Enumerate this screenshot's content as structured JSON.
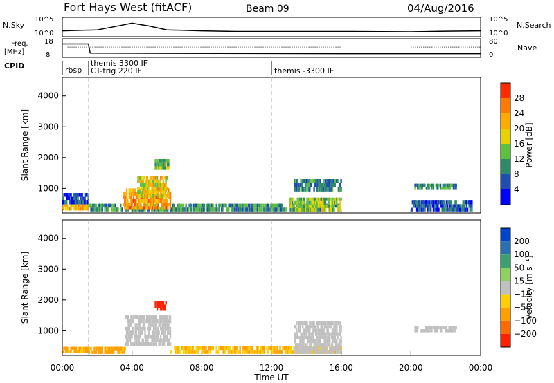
{
  "header": {
    "title": "Fort Hays West (fitACF)",
    "beam": "Beam 09",
    "date": "04/Aug/2016"
  },
  "panels": {
    "nsky": {
      "left_label": "N.Sky",
      "right_label": "N.Search",
      "left_ticks": [
        "10^5",
        "10^0"
      ],
      "right_ticks": [
        "10^5",
        "10^0"
      ]
    },
    "freq": {
      "left_label_1": "Freq.",
      "left_label_2": "[MHz]",
      "right_label": "Nave",
      "left_ticks": [
        "18",
        "8"
      ],
      "right_ticks": [
        "80",
        "0"
      ]
    },
    "cpid": {
      "label": "CPID",
      "segments": [
        {
          "label": "rbsp",
          "row": 2
        },
        {
          "label": "themis 3300 IF",
          "row": 1
        },
        {
          "label": "CT-trig 220 IF",
          "row": 2
        },
        {
          "label": "themis -3300 IF",
          "row": 2
        }
      ]
    }
  },
  "colors": {
    "power": [
      "#0000ff",
      "#1e4db4",
      "#2f8a6a",
      "#5fbf3f",
      "#e6d200",
      "#ffaa00",
      "#ff7a00",
      "#ff2a00"
    ],
    "velocity": [
      "#0044cc",
      "#2a6fb0",
      "#3aa070",
      "#8fd060",
      "#c0c0c0",
      "#ffd000",
      "#ffa000",
      "#ff6a00",
      "#ff2000"
    ]
  },
  "chart_data": [
    {
      "type": "heatmap",
      "panel": "power",
      "ylabel": "Slant Range [km]",
      "yticks": [
        "1000",
        "2000",
        "3000",
        "4000"
      ],
      "ylim": [
        200,
        4600
      ],
      "xlim": [
        0,
        24
      ],
      "colorbar_label": "Power [dB]",
      "colorbar_ticks": [
        "4",
        "8",
        "12",
        "16",
        "20",
        "24",
        "28"
      ],
      "clim": [
        0,
        30
      ],
      "regions": [
        {
          "t0": 0.0,
          "t1": 1.5,
          "r0": 280,
          "r1": 480,
          "level": 20
        },
        {
          "t0": 0.0,
          "t1": 1.5,
          "r0": 480,
          "r1": 850,
          "level": 6
        },
        {
          "t0": 1.5,
          "t1": 16.0,
          "r0": 250,
          "r1": 500,
          "level": 10
        },
        {
          "t0": 3.5,
          "t1": 6.2,
          "r0": 300,
          "r1": 1000,
          "level": 22
        },
        {
          "t0": 4.3,
          "t1": 6.0,
          "r0": 700,
          "r1": 1400,
          "level": 18
        },
        {
          "t0": 5.3,
          "t1": 6.1,
          "r0": 1600,
          "r1": 1950,
          "level": 12
        },
        {
          "t0": 13.3,
          "t1": 16.0,
          "r0": 900,
          "r1": 1300,
          "level": 8
        },
        {
          "t0": 13.0,
          "t1": 16.0,
          "r0": 250,
          "r1": 700,
          "level": 14
        },
        {
          "t0": 20.2,
          "t1": 22.6,
          "r0": 950,
          "r1": 1150,
          "level": 10
        },
        {
          "t0": 20.0,
          "t1": 23.5,
          "r0": 250,
          "r1": 600,
          "level": 6
        }
      ]
    },
    {
      "type": "heatmap",
      "panel": "velocity",
      "ylabel": "Slant Range [km]",
      "yticks": [
        "1000",
        "2000",
        "3000",
        "4000"
      ],
      "ylim": [
        200,
        4600
      ],
      "xlim": [
        0,
        24
      ],
      "xticks": [
        "00:00",
        "04:00",
        "08:00",
        "12:00",
        "16:00",
        "20:00",
        "00:00"
      ],
      "xlabel": "Time UT",
      "colorbar_label": "Velocity [m s⁻¹]",
      "colorbar_ticks": [
        "200",
        "100",
        "50",
        "15",
        "−15",
        "−50",
        "−100",
        "−200"
      ],
      "regions": [
        {
          "t0": 0.0,
          "t1": 1.5,
          "r0": 280,
          "r1": 480,
          "v": -40
        },
        {
          "t0": 1.5,
          "t1": 3.6,
          "r0": 250,
          "r1": 480,
          "v": -40
        },
        {
          "t0": 3.6,
          "t1": 6.2,
          "r0": 500,
          "r1": 1500,
          "v": 0
        },
        {
          "t0": 5.3,
          "t1": 6.0,
          "r0": 1650,
          "r1": 1950,
          "v": -200
        },
        {
          "t0": 6.2,
          "t1": 16.0,
          "r0": 250,
          "r1": 500,
          "v": -30
        },
        {
          "t0": 13.3,
          "t1": 16.0,
          "r0": 250,
          "r1": 1300,
          "v": 0
        },
        {
          "t0": 20.2,
          "t1": 22.6,
          "r0": 950,
          "r1": 1150,
          "v": 0
        }
      ]
    },
    {
      "type": "line",
      "panel": "nsky",
      "x": [
        0.0,
        2.0,
        3.0,
        4.0,
        5.0,
        6.0,
        8.0,
        10.0,
        12.0,
        14.0,
        16.0,
        20.0,
        22.0,
        24.0
      ],
      "y": [
        0.3,
        0.35,
        0.52,
        0.7,
        0.55,
        0.35,
        0.3,
        0.27,
        0.27,
        0.27,
        0.27,
        0.25,
        0.28,
        0.3
      ],
      "ylim": [
        0,
        1
      ],
      "gaps": [
        [
          16.0,
          20.0
        ]
      ]
    },
    {
      "type": "line",
      "panel": "freq",
      "x": [
        0.0,
        1.5,
        1.6,
        16.0,
        20.0,
        24.0
      ],
      "y": [
        15.2,
        15.2,
        10.3,
        10.0,
        10.0,
        10.0
      ],
      "ylim": [
        8,
        18
      ],
      "nave": 44,
      "gaps": [
        [
          16.0,
          20.0
        ]
      ]
    }
  ]
}
